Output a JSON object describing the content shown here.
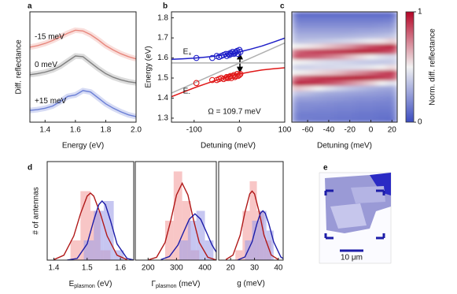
{
  "chart_data": [
    {
      "panel": "a",
      "type": "line",
      "xlabel": "Energy (eV)",
      "ylabel": "Diff. reflectance",
      "xlim": [
        1.3,
        2.0
      ],
      "xticks": [
        1.4,
        1.6,
        1.8,
        {
          "value": 2.0,
          "label": "2.0"
        }
      ],
      "ylim": [
        0,
        3
      ],
      "x": [
        1.3,
        1.35,
        1.4,
        1.45,
        1.5,
        1.55,
        1.6,
        1.65,
        1.7,
        1.75,
        1.8,
        1.85,
        1.9,
        1.95,
        2.0
      ],
      "series": [
        {
          "name": "-15 meV",
          "color": "#e8877d",
          "values": [
            2.04,
            2.08,
            2.14,
            2.22,
            2.32,
            2.42,
            2.5,
            2.48,
            2.38,
            2.24,
            2.08,
            1.96,
            1.86,
            1.78,
            1.72
          ]
        },
        {
          "name": "0 meV",
          "color": "#808080",
          "values": [
            1.29,
            1.32,
            1.36,
            1.42,
            1.52,
            1.66,
            1.8,
            1.78,
            1.62,
            1.46,
            1.32,
            1.22,
            1.15,
            1.1,
            1.07
          ]
        },
        {
          "name": "+15 meV",
          "color": "#6b7fd6",
          "values": [
            0.32,
            0.34,
            0.38,
            0.44,
            0.56,
            0.7,
            0.74,
            0.86,
            0.82,
            0.66,
            0.5,
            0.38,
            0.28,
            0.2,
            0.15
          ]
        }
      ]
    },
    {
      "panel": "b",
      "type": "scatter",
      "xlabel": "Detuning (meV)",
      "ylabel": "Energy (eV)",
      "xlim": [
        -150,
        100
      ],
      "xticks": [
        -100,
        0,
        100
      ],
      "ylim": [
        1.28,
        1.83
      ],
      "yticks": [
        1.3,
        1.4,
        1.5,
        1.6,
        1.7,
        1.8
      ],
      "annotation": "Ω = 109.7 meV",
      "lines": [
        {
          "color": "#b0b0b0",
          "x": [
            -150,
            100
          ],
          "values": [
            1.575,
            1.575
          ]
        },
        {
          "color": "#b0b0b0",
          "x": [
            -150,
            100
          ],
          "values": [
            1.425,
            1.675
          ]
        },
        {
          "color": "#1f1fc8",
          "x": [
            -150,
            -125,
            -100,
            -75,
            -50,
            -25,
            0,
            25,
            50,
            75,
            100
          ],
          "values": [
            1.593,
            1.596,
            1.599,
            1.604,
            1.61,
            1.619,
            1.63,
            1.644,
            1.66,
            1.679,
            1.699
          ]
        },
        {
          "color": "#e01818",
          "x": [
            -150,
            -125,
            -100,
            -75,
            -50,
            -25,
            0,
            25,
            50,
            75,
            100
          ],
          "values": [
            1.407,
            1.429,
            1.451,
            1.471,
            1.49,
            1.506,
            1.52,
            1.531,
            1.54,
            1.546,
            1.551
          ]
        }
      ],
      "series": [
        {
          "label": "E",
          "label_sub": "+",
          "color": "#1f1fc8",
          "x": [
            -95,
            -60,
            -50,
            -45,
            -40,
            -35,
            -30,
            -28,
            -25,
            -22,
            -20,
            -18,
            -15,
            -12,
            -10,
            -8,
            -5,
            -3,
            0,
            2
          ],
          "values": [
            1.6,
            1.6,
            1.61,
            1.605,
            1.61,
            1.615,
            1.62,
            1.61,
            1.62,
            1.615,
            1.625,
            1.62,
            1.63,
            1.62,
            1.625,
            1.63,
            1.635,
            1.62,
            1.64,
            1.63
          ]
        },
        {
          "label": "E",
          "label_sub": "-",
          "color": "#e01818",
          "x": [
            -95,
            -60,
            -50,
            -45,
            -40,
            -35,
            -30,
            -28,
            -25,
            -22,
            -20,
            -18,
            -15,
            -12,
            -10,
            -8,
            -5,
            -3,
            0,
            2
          ],
          "values": [
            1.475,
            1.49,
            1.49,
            1.495,
            1.5,
            1.495,
            1.5,
            1.505,
            1.5,
            1.505,
            1.51,
            1.5,
            1.51,
            1.515,
            1.505,
            1.51,
            1.52,
            1.51,
            1.515,
            1.52
          ]
        }
      ]
    },
    {
      "panel": "c",
      "type": "heatmap",
      "xlabel": "Detuning (meV)",
      "xlim": [
        -75,
        25
      ],
      "xticks": [
        -60,
        -40,
        -20,
        0,
        20
      ],
      "ylim": [
        1.2875,
        1.8125
      ],
      "x": [
        -70,
        -60,
        -50,
        -40,
        -30,
        -20,
        -10,
        0,
        10,
        20
      ],
      "y": [
        1.3,
        1.325,
        1.35,
        1.375,
        1.4,
        1.425,
        1.45,
        1.475,
        1.5,
        1.525,
        1.55,
        1.575,
        1.6,
        1.625,
        1.65,
        1.675,
        1.7,
        1.725,
        1.75,
        1.775,
        1.8
      ],
      "z": [
        [
          0.15,
          0.15,
          0.18,
          0.2,
          0.25,
          0.35,
          0.6,
          0.95,
          0.8,
          0.5,
          0.4,
          0.5,
          0.85,
          0.8,
          0.5,
          0.35,
          0.3,
          0.25,
          0.2,
          0.15,
          0.1
        ],
        [
          0.15,
          0.15,
          0.18,
          0.2,
          0.25,
          0.33,
          0.55,
          0.92,
          0.85,
          0.52,
          0.4,
          0.48,
          0.82,
          0.85,
          0.52,
          0.36,
          0.3,
          0.25,
          0.2,
          0.15,
          0.1
        ],
        [
          0.14,
          0.15,
          0.17,
          0.2,
          0.24,
          0.3,
          0.5,
          0.9,
          0.9,
          0.55,
          0.42,
          0.45,
          0.8,
          0.88,
          0.55,
          0.37,
          0.3,
          0.25,
          0.2,
          0.15,
          0.1
        ],
        [
          0.14,
          0.15,
          0.17,
          0.19,
          0.23,
          0.28,
          0.45,
          0.85,
          0.92,
          0.58,
          0.42,
          0.43,
          0.75,
          0.9,
          0.6,
          0.38,
          0.3,
          0.25,
          0.2,
          0.15,
          0.1
        ],
        [
          0.13,
          0.14,
          0.16,
          0.18,
          0.22,
          0.27,
          0.4,
          0.8,
          0.95,
          0.62,
          0.43,
          0.42,
          0.7,
          0.92,
          0.65,
          0.4,
          0.3,
          0.25,
          0.2,
          0.15,
          0.1
        ],
        [
          0.13,
          0.14,
          0.16,
          0.18,
          0.21,
          0.26,
          0.36,
          0.72,
          0.97,
          0.68,
          0.44,
          0.4,
          0.62,
          0.95,
          0.7,
          0.42,
          0.31,
          0.25,
          0.2,
          0.15,
          0.1
        ],
        [
          0.12,
          0.13,
          0.15,
          0.17,
          0.2,
          0.25,
          0.33,
          0.65,
          0.98,
          0.72,
          0.45,
          0.38,
          0.55,
          0.97,
          0.78,
          0.45,
          0.32,
          0.26,
          0.2,
          0.15,
          0.1
        ],
        [
          0.12,
          0.13,
          0.15,
          0.17,
          0.2,
          0.24,
          0.3,
          0.58,
          0.95,
          0.78,
          0.47,
          0.37,
          0.5,
          0.95,
          0.85,
          0.48,
          0.33,
          0.26,
          0.2,
          0.15,
          0.1
        ],
        [
          0.11,
          0.12,
          0.14,
          0.16,
          0.19,
          0.23,
          0.28,
          0.5,
          0.9,
          0.85,
          0.5,
          0.37,
          0.45,
          0.9,
          0.9,
          0.52,
          0.34,
          0.27,
          0.21,
          0.15,
          0.1
        ],
        [
          0.1,
          0.12,
          0.14,
          0.16,
          0.18,
          0.22,
          0.27,
          0.45,
          0.85,
          0.9,
          0.55,
          0.38,
          0.42,
          0.85,
          0.95,
          0.58,
          0.36,
          0.28,
          0.22,
          0.16,
          0.1
        ]
      ],
      "colormap": [
        "#3b4cc0",
        "#f2f2f2",
        "#b40426"
      ],
      "colorbar": {
        "label": "Norm. diff. reflectance",
        "lim": [
          0,
          1
        ],
        "ticks": [
          0,
          1
        ]
      }
    },
    {
      "panel": "d",
      "type": "histogram",
      "ylabel": "# of antennas",
      "xlabel": {
        "text": "E",
        "sub": "plasmon",
        "unit": " (eV)"
      },
      "xlim": [
        1.38,
        1.64
      ],
      "xticks": [
        1.4,
        1.5,
        1.6
      ],
      "ylim": [
        0,
        10
      ],
      "series": [
        {
          "color": "#f4a0a0",
          "bins": [
            1.45,
            1.48,
            1.51,
            1.54,
            1.57
          ],
          "counts": [
            2,
            7,
            5,
            1
          ]
        },
        {
          "color": "#a0a0e8",
          "bins": [
            1.49,
            1.52,
            1.55,
            1.58,
            1.61
          ],
          "counts": [
            2,
            5,
            6,
            1
          ]
        }
      ],
      "fits": [
        {
          "color": "#b01818",
          "x": [
            1.4,
            1.43,
            1.46,
            1.48,
            1.5,
            1.51,
            1.52,
            1.54,
            1.56,
            1.59,
            1.62
          ],
          "values": [
            0.05,
            0.5,
            2.45,
            4.7,
            6.5,
            6.8,
            6.5,
            4.7,
            2.45,
            0.5,
            0.05
          ]
        },
        {
          "color": "#1c1ca8",
          "x": [
            1.44,
            1.47,
            1.5,
            1.52,
            1.535,
            1.545,
            1.555,
            1.57,
            1.59,
            1.62,
            1.64
          ],
          "values": [
            0.01,
            0.17,
            1.65,
            4.03,
            5.63,
            6,
            5.63,
            4.03,
            1.65,
            0.17,
            0.02
          ]
        }
      ]
    },
    {
      "type": "histogram",
      "xlabel": {
        "text": "Γ",
        "sub": "plasmon",
        "unit": " (meV)"
      },
      "xlim": [
        155,
        440
      ],
      "xticks": [
        200,
        300,
        400
      ],
      "ylim": [
        0,
        10
      ],
      "series": [
        {
          "color": "#f4a0a0",
          "bins": [
            260,
            290,
            320,
            350,
            380
          ],
          "counts": [
            4,
            9,
            6,
            1
          ]
        },
        {
          "color": "#a0a0e8",
          "bins": [
            310,
            340,
            370,
            400,
            430
          ],
          "counts": [
            2,
            4,
            5,
            2
          ]
        }
      ],
      "fits": [
        {
          "color": "#b01818",
          "x": [
            200,
            230,
            260,
            280,
            300,
            320,
            340,
            360,
            380,
            410,
            440
          ],
          "values": [
            0.02,
            0.29,
            1.79,
            4.06,
            6.62,
            7.8,
            6.62,
            4.06,
            1.79,
            0.29,
            0.02
          ]
        },
        {
          "color": "#1c1ca8",
          "x": [
            245,
            275,
            305,
            325,
            345,
            365,
            385,
            405,
            425,
            440
          ],
          "values": [
            0.05,
            0.37,
            1.53,
            2.85,
            4.15,
            4.7,
            4.15,
            2.85,
            1.53,
            0.81
          ]
        }
      ]
    },
    {
      "type": "histogram",
      "xlabel": "g (meV)",
      "xlim": [
        15,
        42
      ],
      "xticks": [
        20,
        30,
        40
      ],
      "ylim": [
        0,
        10
      ],
      "series": [
        {
          "color": "#f4a0a0",
          "bins": [
            22,
            25,
            28,
            31,
            34,
            37
          ],
          "counts": [
            1,
            5,
            8,
            5,
            2
          ]
        },
        {
          "color": "#a0a0e8",
          "bins": [
            26,
            29,
            32,
            35,
            38
          ],
          "counts": [
            2,
            4,
            5,
            3
          ]
        }
      ],
      "fits": [
        {
          "color": "#b01818",
          "x": [
            18,
            21,
            24,
            26,
            28,
            29,
            30,
            32,
            34,
            37,
            40
          ],
          "values": [
            0.05,
            0.51,
            2.52,
            4.85,
            6.72,
            7,
            6.72,
            4.85,
            2.52,
            0.51,
            0.05
          ]
        },
        {
          "color": "#1c1ca8",
          "x": [
            23,
            26,
            29,
            31,
            32.5,
            33.5,
            34.5,
            36,
            38,
            41,
            42
          ],
          "values": [
            0.02,
            0.32,
            1.86,
            3.69,
            4.76,
            5,
            4.76,
            3.69,
            1.86,
            0.32,
            0.15
          ]
        }
      ]
    }
  ],
  "image": {
    "panel": "e",
    "scale_bar": "10 μm"
  }
}
